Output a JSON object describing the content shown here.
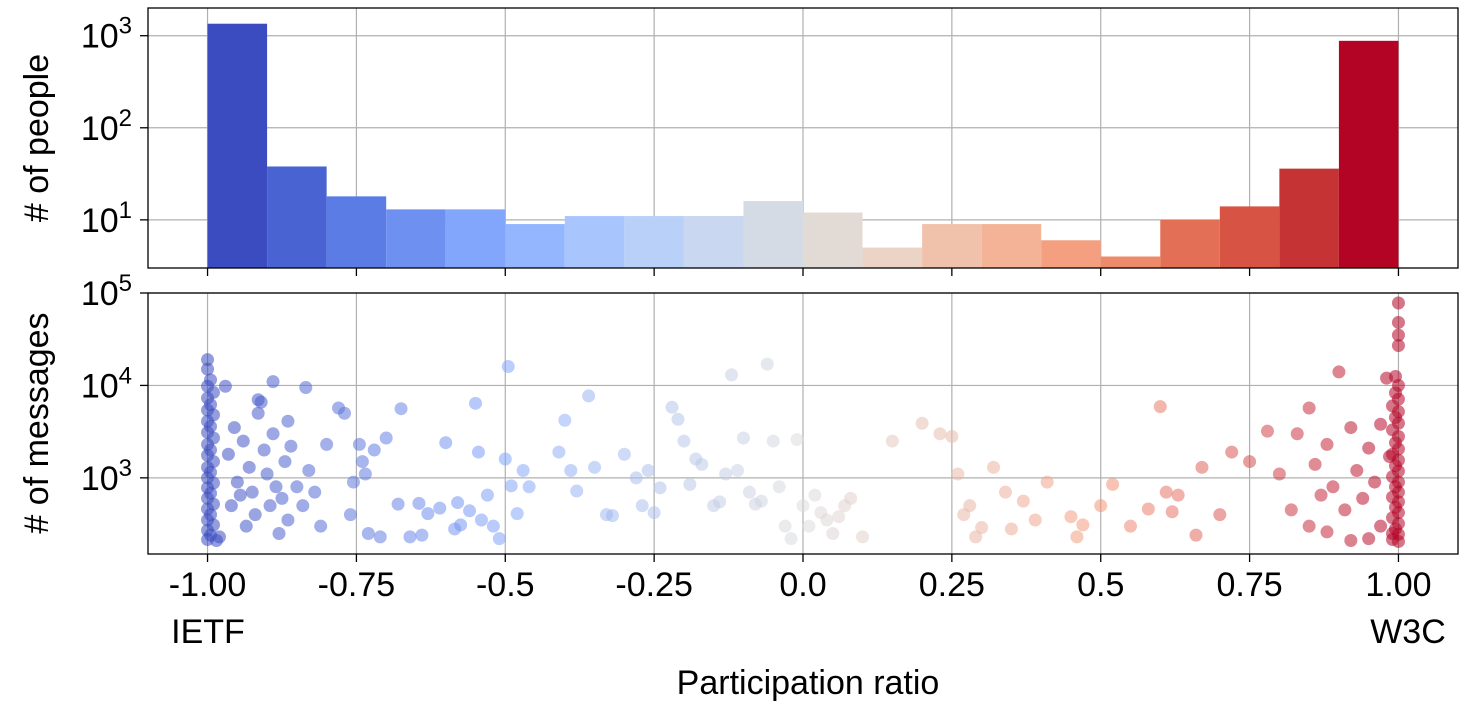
{
  "chart_data": [
    {
      "type": "bar",
      "panel": "histogram",
      "ylabel": "# of people",
      "yscale": "log",
      "ylim": [
        3,
        2000
      ],
      "y_ticks": [
        {
          "value": 10,
          "base": "10",
          "exp": "1"
        },
        {
          "value": 100,
          "base": "10",
          "exp": "2"
        },
        {
          "value": 1000,
          "base": "10",
          "exp": "3"
        }
      ],
      "grid": true,
      "bin_edges": [
        -1.0,
        -0.9,
        -0.8,
        -0.7,
        -0.6,
        -0.5,
        -0.4,
        -0.3,
        -0.2,
        -0.1,
        0.0,
        0.1,
        0.2,
        0.3,
        0.4,
        0.5,
        0.6,
        0.7,
        0.8,
        0.9,
        1.0
      ],
      "values": [
        1350,
        38,
        18,
        13,
        13,
        9,
        11,
        11,
        11,
        16,
        12,
        5,
        9,
        9,
        6,
        4,
        10,
        14,
        36,
        880
      ],
      "colors": [
        "#3b4cc0",
        "#4a63d3",
        "#5b7ce5",
        "#6e90f0",
        "#82a6fb",
        "#94b6ff",
        "#a8c5fd",
        "#b9d0f9",
        "#c9d7f0",
        "#d5dbe5",
        "#e2dad5",
        "#ebd3c6",
        "#f1c2ab",
        "#f4b396",
        "#f39f80",
        "#ec8a6a",
        "#e36f56",
        "#d75445",
        "#c53334",
        "#b40426"
      ]
    },
    {
      "type": "scatter",
      "panel": "messages",
      "ylabel": "# of messages",
      "yscale": "log",
      "ylim": [
        150,
        100000
      ],
      "y_ticks": [
        {
          "value": 1000,
          "base": "10",
          "exp": "3"
        },
        {
          "value": 10000,
          "base": "10",
          "exp": "4"
        },
        {
          "value": 100000,
          "base": "10",
          "exp": "5"
        }
      ],
      "grid": true,
      "points": [
        [
          -1.0,
          19000
        ],
        [
          -1.0,
          15000
        ],
        [
          -0.995,
          11500
        ],
        [
          -1.0,
          9800
        ],
        [
          -0.99,
          8400
        ],
        [
          -1.0,
          7300
        ],
        [
          -0.995,
          6200
        ],
        [
          -1.0,
          5400
        ],
        [
          -0.99,
          4800
        ],
        [
          -1.0,
          4100
        ],
        [
          -0.995,
          3600
        ],
        [
          -1.0,
          3100
        ],
        [
          -0.99,
          2700
        ],
        [
          -1.0,
          2300
        ],
        [
          -0.995,
          2000
        ],
        [
          -1.0,
          1750
        ],
        [
          -0.99,
          1500
        ],
        [
          -1.0,
          1300
        ],
        [
          -0.995,
          1150
        ],
        [
          -1.0,
          1000
        ],
        [
          -0.99,
          880
        ],
        [
          -1.0,
          780
        ],
        [
          -0.995,
          680
        ],
        [
          -1.0,
          600
        ],
        [
          -0.99,
          520
        ],
        [
          -1.0,
          460
        ],
        [
          -0.995,
          400
        ],
        [
          -1.0,
          350
        ],
        [
          -0.99,
          310
        ],
        [
          -1.0,
          270
        ],
        [
          -0.995,
          240
        ],
        [
          -1.0,
          215
        ],
        [
          -0.985,
          210
        ],
        [
          -0.98,
          230
        ],
        [
          -0.97,
          9800
        ],
        [
          -0.965,
          1800
        ],
        [
          -0.96,
          500
        ],
        [
          -0.955,
          3500
        ],
        [
          -0.95,
          900
        ],
        [
          -0.945,
          650
        ],
        [
          -0.94,
          2500
        ],
        [
          -0.935,
          300
        ],
        [
          -0.93,
          1300
        ],
        [
          -0.925,
          700
        ],
        [
          -0.92,
          400
        ],
        [
          -0.915,
          5000
        ],
        [
          -0.91,
          6600
        ],
        [
          -0.905,
          2000
        ],
        [
          -0.9,
          1100
        ],
        [
          -0.895,
          500
        ],
        [
          -0.89,
          3000
        ],
        [
          -0.885,
          800
        ],
        [
          -0.88,
          250
        ],
        [
          -0.875,
          600
        ],
        [
          -0.87,
          1500
        ],
        [
          -0.865,
          350
        ],
        [
          -0.86,
          2200
        ],
        [
          -0.85,
          800
        ],
        [
          -0.84,
          500
        ],
        [
          -0.83,
          1200
        ],
        [
          -0.82,
          700
        ],
        [
          -0.81,
          300
        ],
        [
          -0.8,
          2300
        ],
        [
          -0.89,
          11000
        ],
        [
          -0.915,
          7000
        ],
        [
          -0.865,
          4100
        ],
        [
          -0.835,
          9500
        ],
        [
          -0.78,
          5700
        ],
        [
          -0.77,
          5000
        ],
        [
          -0.76,
          400
        ],
        [
          -0.755,
          900
        ],
        [
          -0.745,
          2300
        ],
        [
          -0.74,
          1500
        ],
        [
          -0.735,
          1100
        ],
        [
          -0.73,
          250
        ],
        [
          -0.72,
          2000
        ],
        [
          -0.71,
          230
        ],
        [
          -0.7,
          2700
        ],
        [
          -0.68,
          520
        ],
        [
          -0.675,
          5600
        ],
        [
          -0.66,
          230
        ],
        [
          -0.645,
          530
        ],
        [
          -0.64,
          240
        ],
        [
          -0.63,
          410
        ],
        [
          -0.61,
          470
        ],
        [
          -0.6,
          2400
        ],
        [
          -0.585,
          280
        ],
        [
          -0.58,
          540
        ],
        [
          -0.575,
          310
        ],
        [
          -0.56,
          440
        ],
        [
          -0.55,
          6400
        ],
        [
          -0.545,
          1900
        ],
        [
          -0.54,
          350
        ],
        [
          -0.53,
          650
        ],
        [
          -0.52,
          300
        ],
        [
          -0.51,
          220
        ],
        [
          -0.5,
          1600
        ],
        [
          -0.495,
          16000
        ],
        [
          -0.49,
          820
        ],
        [
          -0.48,
          410
        ],
        [
          -0.47,
          1200
        ],
        [
          -0.46,
          800
        ],
        [
          -0.41,
          1900
        ],
        [
          -0.4,
          4200
        ],
        [
          -0.39,
          1200
        ],
        [
          -0.38,
          720
        ],
        [
          -0.36,
          7700
        ],
        [
          -0.35,
          1300
        ],
        [
          -0.33,
          400
        ],
        [
          -0.32,
          390
        ],
        [
          -0.3,
          1800
        ],
        [
          -0.28,
          1000
        ],
        [
          -0.27,
          500
        ],
        [
          -0.26,
          1200
        ],
        [
          -0.25,
          420
        ],
        [
          -0.24,
          780
        ],
        [
          -0.22,
          5800
        ],
        [
          -0.21,
          4300
        ],
        [
          -0.2,
          2500
        ],
        [
          -0.19,
          850
        ],
        [
          -0.18,
          1600
        ],
        [
          -0.17,
          1400
        ],
        [
          -0.15,
          500
        ],
        [
          -0.14,
          550
        ],
        [
          -0.13,
          1100
        ],
        [
          -0.12,
          13000
        ],
        [
          -0.11,
          1200
        ],
        [
          -0.1,
          2700
        ],
        [
          -0.09,
          700
        ],
        [
          -0.08,
          520
        ],
        [
          -0.07,
          560
        ],
        [
          -0.06,
          17000
        ],
        [
          -0.05,
          2500
        ],
        [
          -0.04,
          800
        ],
        [
          -0.03,
          300
        ],
        [
          -0.02,
          220
        ],
        [
          -0.01,
          2600
        ],
        [
          0.0,
          500
        ],
        [
          0.01,
          300
        ],
        [
          0.02,
          650
        ],
        [
          0.03,
          420
        ],
        [
          0.04,
          350
        ],
        [
          0.05,
          250
        ],
        [
          0.06,
          380
        ],
        [
          0.07,
          500
        ],
        [
          0.08,
          600
        ],
        [
          0.1,
          230
        ],
        [
          0.15,
          2500
        ],
        [
          0.2,
          3900
        ],
        [
          0.23,
          3000
        ],
        [
          0.25,
          2800
        ],
        [
          0.26,
          1100
        ],
        [
          0.27,
          400
        ],
        [
          0.28,
          500
        ],
        [
          0.29,
          230
        ],
        [
          0.3,
          290
        ],
        [
          0.32,
          1300
        ],
        [
          0.34,
          700
        ],
        [
          0.35,
          280
        ],
        [
          0.37,
          560
        ],
        [
          0.39,
          350
        ],
        [
          0.41,
          900
        ],
        [
          0.45,
          380
        ],
        [
          0.46,
          230
        ],
        [
          0.47,
          310
        ],
        [
          0.5,
          500
        ],
        [
          0.52,
          850
        ],
        [
          0.55,
          300
        ],
        [
          0.58,
          460
        ],
        [
          0.6,
          5900
        ],
        [
          0.61,
          700
        ],
        [
          0.62,
          430
        ],
        [
          0.63,
          650
        ],
        [
          0.66,
          240
        ],
        [
          0.67,
          1300
        ],
        [
          0.7,
          400
        ],
        [
          0.72,
          1900
        ],
        [
          0.75,
          1500
        ],
        [
          0.78,
          3200
        ],
        [
          0.8,
          1100
        ],
        [
          0.82,
          450
        ],
        [
          0.83,
          3000
        ],
        [
          0.85,
          5700
        ],
        [
          0.86,
          1400
        ],
        [
          0.87,
          650
        ],
        [
          0.88,
          2300
        ],
        [
          0.89,
          800
        ],
        [
          0.9,
          14000
        ],
        [
          0.91,
          450
        ],
        [
          0.92,
          3500
        ],
        [
          0.93,
          1200
        ],
        [
          0.94,
          600
        ],
        [
          0.95,
          2100
        ],
        [
          0.96,
          900
        ],
        [
          0.97,
          3800
        ],
        [
          0.98,
          12000
        ],
        [
          0.985,
          1700
        ],
        [
          0.99,
          250
        ],
        [
          0.85,
          300
        ],
        [
          0.88,
          260
        ],
        [
          0.92,
          210
        ],
        [
          0.95,
          220
        ],
        [
          0.97,
          300
        ],
        [
          1.0,
          78000
        ],
        [
          1.0,
          48000
        ],
        [
          1.0,
          35000
        ],
        [
          1.0,
          27000
        ],
        [
          0.995,
          12500
        ],
        [
          1.0,
          10000
        ],
        [
          0.995,
          8300
        ],
        [
          1.0,
          7100
        ],
        [
          0.99,
          6000
        ],
        [
          1.0,
          5200
        ],
        [
          0.995,
          4500
        ],
        [
          1.0,
          3900
        ],
        [
          0.99,
          3300
        ],
        [
          1.0,
          2800
        ],
        [
          0.995,
          2400
        ],
        [
          1.0,
          2050
        ],
        [
          0.99,
          1800
        ],
        [
          1.0,
          1550
        ],
        [
          0.995,
          1350
        ],
        [
          1.0,
          1180
        ],
        [
          0.99,
          1030
        ],
        [
          1.0,
          900
        ],
        [
          0.995,
          800
        ],
        [
          1.0,
          700
        ],
        [
          0.99,
          620
        ],
        [
          1.0,
          550
        ],
        [
          0.995,
          480
        ],
        [
          1.0,
          420
        ],
        [
          0.99,
          370
        ],
        [
          1.0,
          320
        ],
        [
          0.995,
          280
        ],
        [
          1.0,
          245
        ],
        [
          0.99,
          215
        ],
        [
          1.0,
          205
        ]
      ]
    }
  ],
  "shared_x": {
    "label": "Participation ratio",
    "xlim": [
      -1.1,
      1.1
    ],
    "ticks": [
      {
        "value": -1.0,
        "label": "-1.00"
      },
      {
        "value": -0.75,
        "label": "-0.75"
      },
      {
        "value": -0.5,
        "label": "-0.5"
      },
      {
        "value": -0.25,
        "label": "-0.25"
      },
      {
        "value": 0.0,
        "label": "0.0"
      },
      {
        "value": 0.25,
        "label": "0.25"
      },
      {
        "value": 0.5,
        "label": "0.5"
      },
      {
        "value": 0.75,
        "label": "0.75"
      },
      {
        "value": 1.0,
        "label": "1.00"
      }
    ],
    "left_end_label": "IETF",
    "right_end_label": "W3C"
  },
  "colors": {
    "cool_end": "#3b4cc0",
    "neutral": "#dddddd",
    "warm_end": "#b40426",
    "grid": "#b0b0b0"
  }
}
